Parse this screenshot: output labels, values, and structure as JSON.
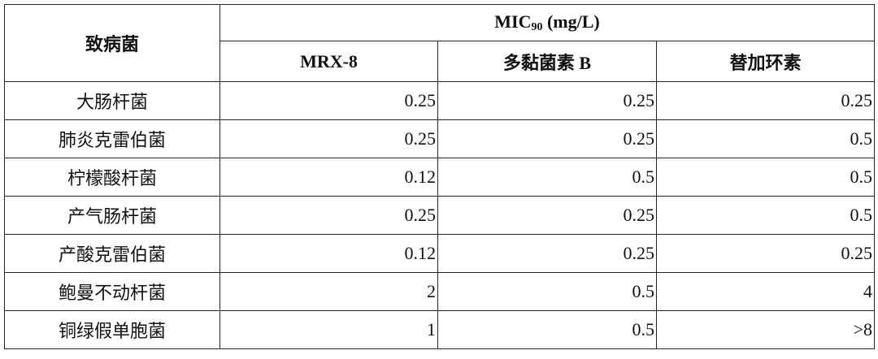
{
  "table": {
    "header": {
      "pathogen": "致病菌",
      "mic": "MIC",
      "mic_sub": "90",
      "mic_unit": "(mg/L)",
      "columns": [
        "MRX-8",
        "多黏菌素 B",
        "替加环素"
      ]
    },
    "rows": [
      [
        "大肠杆菌",
        "0.25",
        "0.25",
        "0.25"
      ],
      [
        "肺炎克雷伯菌",
        "0.25",
        "0.25",
        "0.5"
      ],
      [
        "柠檬酸杆菌",
        "0.12",
        "0.5",
        "0.5"
      ],
      [
        "产气肠杆菌",
        "0.25",
        "0.25",
        "0.5"
      ],
      [
        "产酸克雷伯菌",
        "0.12",
        "0.25",
        "0.25"
      ],
      [
        "鲍曼不动杆菌",
        "2",
        "0.5",
        "4"
      ],
      [
        "铜绿假单胞菌",
        "1",
        "0.5",
        ">8"
      ]
    ]
  }
}
